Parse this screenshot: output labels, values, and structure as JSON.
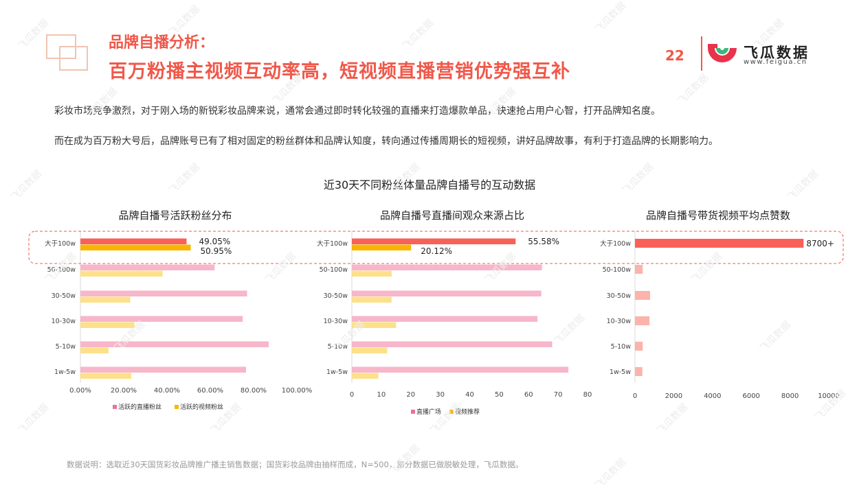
{
  "header": {
    "pre_title": "品牌自播分析：",
    "title": "百万粉播主视频互动率高，短视频直播营销优势强互补",
    "page_number": "22"
  },
  "logo": {
    "name": "飞瓜数据",
    "url": "www.feigua.cn",
    "colors": {
      "red": "#e8334a",
      "green": "#3db87a"
    }
  },
  "paragraphs": [
    "彩妆市场竞争激烈，对于刚入场的新锐彩妆品牌来说，通常会通过即时转化较强的直播来打造爆款单品，快速抢占用户心智，打开品牌知名度。",
    "而在成为百万粉大号后，品牌账号已有了相对固定的粉丝群体和品牌认知度，转向通过传播周期长的短视频，讲好品牌故事，有利于打造品牌的长期影响力。"
  ],
  "main_title": "近30天不同粉丝体量品牌自播号的互动数据",
  "footnote": "数据说明：选取近30天国货彩妆品牌推广播主销售数据；国货彩妆品牌由抽样而成，N=500，部分数据已做脱敏处理，飞瓜数据。",
  "watermark": "飞瓜数据",
  "colors": {
    "accent": "#f0584a",
    "series_pink": "#f7b6c9",
    "series_yellow": "#fde08a",
    "highlight_red": "#f86158",
    "highlight_gold": "#f7b500",
    "legend_pink": "#e8739a",
    "legend_yellow": "#f5b800"
  },
  "chart_data": [
    {
      "type": "bar",
      "orientation": "horizontal",
      "title": "品牌自播号活跃粉丝分布",
      "categories": [
        "大于100w",
        "50-100w",
        "30-50w",
        "10-30w",
        "5-10w",
        "1w-5w"
      ],
      "series": [
        {
          "name": "活跃的直播粉丝",
          "values": [
            49.05,
            62,
            77,
            75,
            87,
            76.5
          ]
        },
        {
          "name": "活跃的视频粉丝",
          "values": [
            50.95,
            38,
            23,
            25,
            13,
            23.5
          ]
        }
      ],
      "x_ticks": [
        "0.00%",
        "20.00%",
        "40.00%",
        "60.00%",
        "80.00%",
        "100.00%"
      ],
      "xlim": [
        0,
        100
      ],
      "data_labels": [
        "49.05%",
        "50.95%"
      ],
      "legend": "bottom"
    },
    {
      "type": "bar",
      "orientation": "horizontal",
      "title": "品牌自播号直播间观众来源占比",
      "categories": [
        "大于100w",
        "50-100w",
        "30-50w",
        "10-30w",
        "5-10w",
        "1w-5w"
      ],
      "series": [
        {
          "name": "直播广场",
          "values": [
            55.58,
            64.5,
            64.3,
            63,
            68,
            73.5
          ]
        },
        {
          "name": "视频推荐",
          "values": [
            20.12,
            13.5,
            13.5,
            15,
            12,
            9
          ]
        }
      ],
      "x_ticks": [
        "0",
        "10",
        "20",
        "30",
        "40",
        "50",
        "60",
        "70",
        "80"
      ],
      "xlim": [
        0,
        80
      ],
      "data_labels": [
        "55.58%",
        "20.12%"
      ],
      "legend": "bottom"
    },
    {
      "type": "bar",
      "orientation": "horizontal",
      "title": "品牌自播号带货视频平均点赞数",
      "categories": [
        "大于100w",
        "50-100w",
        "30-50w",
        "10-30w",
        "5-10w",
        "1w-5w"
      ],
      "series": [
        {
          "values": [
            8700,
            400,
            780,
            750,
            400,
            380
          ]
        }
      ],
      "x_ticks": [
        "0",
        "2000",
        "4000",
        "6000",
        "8000",
        "10000"
      ],
      "xlim": [
        0,
        10000
      ],
      "data_labels": [
        "8700+"
      ]
    }
  ]
}
